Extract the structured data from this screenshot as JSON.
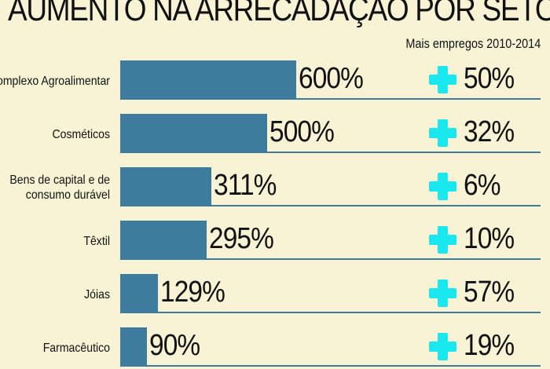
{
  "chart_data": {
    "type": "bar",
    "title": "AUMENTO NA ARRECADAÇAO POR SETOR",
    "subtitle": "Mais empregos 2010-2014",
    "categories": [
      "Complexo Agroalimentar",
      "Cosméticos",
      "Bens de capital e de consumo durável",
      "Têxtil",
      "Jóias",
      "Farmacêutico"
    ],
    "values": [
      600,
      500,
      311,
      295,
      129,
      90
    ],
    "value_labels": [
      "600%",
      "500%",
      "311%",
      "295%",
      "129%",
      "90%"
    ],
    "jobs_increase": [
      50,
      32,
      6,
      10,
      57,
      19
    ],
    "jobs_labels": [
      "50%",
      "32%",
      "6%",
      "10%",
      "57%",
      "19%"
    ],
    "unit": "%",
    "orientation": "horizontal",
    "bar_color": "#3e7c9d",
    "plus_color": "#19e8ee"
  }
}
